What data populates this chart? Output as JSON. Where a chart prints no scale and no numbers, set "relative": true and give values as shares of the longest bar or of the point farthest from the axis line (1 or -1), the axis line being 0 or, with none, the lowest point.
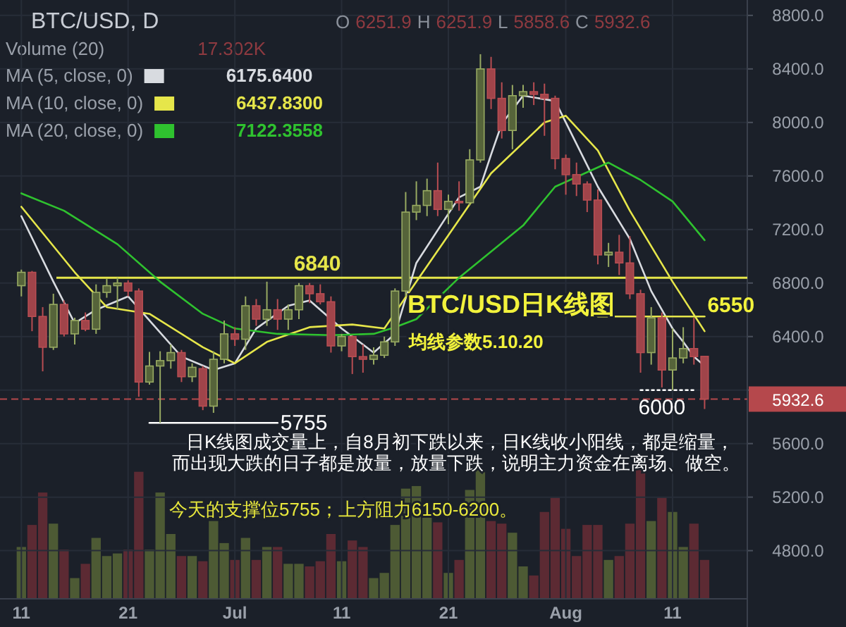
{
  "chart_data": [
    {
      "type": "candlestick",
      "title": "BTC/USD, D",
      "x": [
        "--06-11",
        "--06-12",
        "--06-13",
        "--06-14",
        "--06-15",
        "--06-16",
        "--06-17",
        "--06-18",
        "--06-19",
        "--06-20",
        "--06-21",
        "--06-22",
        "--06-23",
        "--06-24",
        "--06-25",
        "--06-26",
        "--06-27",
        "--06-28",
        "--06-29",
        "--06-30",
        "--07-01",
        "--07-02",
        "--07-03",
        "--07-04",
        "--07-05",
        "--07-06",
        "--07-07",
        "--07-08",
        "--07-09",
        "--07-10",
        "--07-11",
        "--07-12",
        "--07-13",
        "--07-14",
        "--07-15",
        "--07-16",
        "--07-17",
        "--07-18",
        "--07-19",
        "--07-20",
        "--07-21",
        "--07-22",
        "--07-23",
        "--07-24",
        "--07-25",
        "--07-26",
        "--07-27",
        "--07-28",
        "--07-29",
        "--07-30",
        "--07-31",
        "--08-01",
        "--08-02",
        "--08-03",
        "--08-04",
        "--08-05",
        "--08-06",
        "--08-07",
        "--08-08",
        "--08-09",
        "--08-10",
        "--08-11",
        "--08-12",
        "--08-13",
        "--08-14"
      ],
      "ohlc": [
        [
          6780,
          6900,
          6700,
          6880
        ],
        [
          6880,
          6890,
          6440,
          6550
        ],
        [
          6550,
          6620,
          6140,
          6320
        ],
        [
          6320,
          6720,
          6300,
          6640
        ],
        [
          6640,
          6670,
          6400,
          6420
        ],
        [
          6420,
          6540,
          6340,
          6520
        ],
        [
          6520,
          6580,
          6440,
          6455
        ],
        [
          6455,
          6790,
          6420,
          6730
        ],
        [
          6730,
          6830,
          6690,
          6780
        ],
        [
          6780,
          6840,
          6600,
          6800
        ],
        [
          6800,
          6820,
          6700,
          6740
        ],
        [
          6740,
          6760,
          5950,
          6060
        ],
        [
          6060,
          6285,
          6040,
          6180
        ],
        [
          6180,
          6290,
          5755,
          6220
        ],
        [
          6220,
          6340,
          6160,
          6280
        ],
        [
          6280,
          6300,
          6060,
          6100
        ],
        [
          6100,
          6200,
          6060,
          6170
        ],
        [
          6160,
          6180,
          5850,
          5880
        ],
        [
          5880,
          6290,
          5830,
          6230
        ],
        [
          6230,
          6520,
          6200,
          6420
        ],
        [
          6420,
          6470,
          6330,
          6380
        ],
        [
          6380,
          6700,
          6300,
          6630
        ],
        [
          6630,
          6680,
          6480,
          6530
        ],
        [
          6530,
          6810,
          6480,
          6600
        ],
        [
          6600,
          6680,
          6450,
          6530
        ],
        [
          6530,
          6640,
          6450,
          6600
        ],
        [
          6600,
          6800,
          6530,
          6780
        ],
        [
          6780,
          6800,
          6650,
          6720
        ],
        [
          6720,
          6790,
          6640,
          6660
        ],
        [
          6660,
          6700,
          6280,
          6330
        ],
        [
          6330,
          6420,
          6290,
          6400
        ],
        [
          6400,
          6410,
          6120,
          6250
        ],
        [
          6250,
          6340,
          6130,
          6230
        ],
        [
          6230,
          6320,
          6190,
          6260
        ],
        [
          6260,
          6400,
          6240,
          6360
        ],
        [
          6360,
          6760,
          6330,
          6740
        ],
        [
          6740,
          7480,
          6700,
          7330
        ],
        [
          7330,
          7560,
          7270,
          7380
        ],
        [
          7380,
          7580,
          7300,
          7490
        ],
        [
          7490,
          7700,
          7300,
          7350
        ],
        [
          7350,
          7460,
          7240,
          7410
        ],
        [
          7410,
          7560,
          7340,
          7400
        ],
        [
          7400,
          7800,
          7380,
          7720
        ],
        [
          7720,
          8510,
          7700,
          8400
        ],
        [
          8400,
          8490,
          8100,
          8180
        ],
        [
          8180,
          8300,
          7880,
          7940
        ],
        [
          7940,
          8280,
          7800,
          8200
        ],
        [
          8200,
          8280,
          8110,
          8230
        ],
        [
          8230,
          8300,
          8130,
          8210
        ],
        [
          8210,
          8290,
          7900,
          8180
        ],
        [
          8180,
          8200,
          7650,
          7730
        ],
        [
          7730,
          7760,
          7460,
          7610
        ],
        [
          7610,
          7700,
          7450,
          7540
        ],
        [
          7540,
          7560,
          7330,
          7420
        ],
        [
          7420,
          7500,
          6940,
          7010
        ],
        [
          7010,
          7100,
          6920,
          7030
        ],
        [
          7030,
          7160,
          6860,
          6950
        ],
        [
          6950,
          7150,
          6680,
          6720
        ],
        [
          6720,
          6750,
          6130,
          6280
        ],
        [
          6280,
          6620,
          6190,
          6540
        ],
        [
          6540,
          6580,
          6020,
          6150
        ],
        [
          6150,
          6460,
          6000,
          6240
        ],
        [
          6240,
          6470,
          6200,
          6310
        ],
        [
          6310,
          6540,
          6190,
          6250
        ],
        [
          6251.9,
          6251.9,
          5858.6,
          5932.6
        ]
      ],
      "series": [
        {
          "name": "MA (5, close, 0)",
          "type": "line",
          "color": "#d8dbe0",
          "x": [
            "--06-11",
            "--06-14",
            "--06-16",
            "--06-18",
            "--06-21",
            "--06-23",
            "--06-26",
            "--06-29",
            "--07-01",
            "--07-03",
            "--07-06",
            "--07-08",
            "--07-11",
            "--07-14",
            "--07-16",
            "--07-18",
            "--07-22",
            "--07-24",
            "--07-25",
            "--07-26",
            "--07-28",
            "--07-31",
            "--08-04",
            "--08-07",
            "--08-09",
            "--08-11",
            "--08-12",
            "--08-13",
            "--08-14"
          ],
          "values": [
            7300,
            6810,
            6500,
            6600,
            6700,
            6520,
            6250,
            6150,
            6200,
            6460,
            6630,
            6670,
            6460,
            6280,
            6420,
            6950,
            7440,
            7520,
            7760,
            7990,
            8200,
            8160,
            7520,
            7130,
            6740,
            6460,
            6360,
            6250,
            6180
          ]
        },
        {
          "name": "MA (10, close, 0)",
          "type": "line",
          "color": "#e6e64a",
          "x": [
            "--06-11",
            "--06-16",
            "--06-19",
            "--06-23",
            "--06-28",
            "--07-01",
            "--07-04",
            "--07-08",
            "--07-12",
            "--07-15",
            "--07-18",
            "--07-25",
            "--07-30",
            "--08-01",
            "--08-04",
            "--08-07",
            "--08-11",
            "--08-14"
          ],
          "values": [
            7370,
            6880,
            6620,
            6570,
            6320,
            6200,
            6360,
            6470,
            6490,
            6460,
            6810,
            7620,
            8000,
            8050,
            7790,
            7340,
            6810,
            6440
          ]
        },
        {
          "name": "MA (20, close, 0)",
          "type": "line",
          "color": "#2fc22f",
          "x": [
            "--06-11",
            "--06-15",
            "--06-20",
            "--06-24",
            "--06-28",
            "--07-01",
            "--07-05",
            "--07-10",
            "--07-14",
            "--07-16",
            "--07-18",
            "--07-22",
            "--07-28",
            "--07-31",
            "--08-05",
            "--08-08",
            "--08-11",
            "--08-14"
          ],
          "values": [
            7470,
            7340,
            7090,
            6810,
            6570,
            6460,
            6420,
            6410,
            6420,
            6470,
            6530,
            6840,
            7230,
            7520,
            7700,
            7570,
            7410,
            7120
          ]
        },
        {
          "type": "line",
          "color": "#ffffff",
          "x": [
            "--06-23",
            "--07-05"
          ],
          "values": [
            5755,
            5755
          ]
        },
        {
          "type": "line",
          "color": "#e6e64a",
          "x": [
            "--08-04",
            "--08-14"
          ],
          "values": [
            6550,
            6550
          ]
        },
        {
          "type": "line",
          "color": "#ffffff",
          "line_style": "dotted",
          "x": [
            "--08-08",
            "--08-13"
          ],
          "values": [
            6000,
            6000
          ]
        }
      ],
      "xlim": [
        "--06-09",
        "--08-18"
      ],
      "xticks": [
        {
          "value": "--06-11",
          "label": "11"
        },
        {
          "value": "--06-21",
          "label": "21"
        },
        {
          "value": "--07-01",
          "label": "Jul"
        },
        {
          "value": "--07-11",
          "label": "11"
        },
        {
          "value": "--07-21",
          "label": "21"
        },
        {
          "value": "--08-01",
          "label": "Aug"
        },
        {
          "value": "--08-11",
          "label": "11"
        }
      ],
      "ylim": [
        4440,
        8915
      ],
      "yticks": [
        {
          "value": 4800,
          "label": "4800.0"
        },
        {
          "value": 5200,
          "label": "5200.0"
        },
        {
          "value": 5600,
          "label": "5600.0"
        },
        {
          "value": 6000,
          "label": null
        },
        {
          "value": 6400,
          "label": "6400.0"
        },
        {
          "value": 6800,
          "label": "6800.0"
        },
        {
          "value": 7200,
          "label": "7200.0"
        },
        {
          "value": 7600,
          "label": "7600.0"
        },
        {
          "value": 8000,
          "label": "8000.0"
        },
        {
          "value": 8400,
          "label": "8400.0"
        },
        {
          "value": 8800,
          "label": "8800.0"
        }
      ],
      "grid": true,
      "legend": "top left",
      "ref_lines": [
        {
          "axis": "y",
          "value": 6840,
          "label": "6840",
          "color": "#e6e64a"
        },
        {
          "axis": "y",
          "value": 5932.6,
          "label": "5932.6",
          "color": "#b5484c",
          "line_style": "dashed"
        }
      ],
      "annotations": [
        "O 6251.9 H 6251.9 L 5858.6 C 5932.6",
        "6175.6400",
        "6437.8300",
        "7122.3558",
        "BTC/USD日K线图",
        "均线参数5.10.20",
        "日K线图成交量上，自8月初下跌以来，日K线收小阳线，都是缩量，",
        "而出现大跌的日子都是放量，放量下跌，说明主力资金在离场、做空。",
        "今天的支撑位5755；上方阻力6150-6200。",
        {
          "text": "5755",
          "x": "--07-05",
          "y": 5755
        },
        {
          "text": "6550",
          "x": "--08-14",
          "y": 6550
        },
        {
          "text": "6000",
          "x": "--08-10",
          "y": 6000
        }
      ]
    },
    {
      "type": "bar",
      "relative": true,
      "categories": [
        null,
        null,
        null,
        null,
        null,
        null,
        null,
        null,
        null,
        null,
        null,
        null,
        null,
        null,
        null,
        null,
        null,
        null,
        null,
        null,
        null,
        null,
        null,
        null,
        null,
        null,
        null,
        null,
        null,
        null,
        null,
        null,
        null,
        null,
        null,
        null,
        null,
        null,
        null,
        null,
        null,
        null,
        null,
        null,
        null,
        null,
        null,
        null,
        null,
        null,
        null,
        null,
        null,
        null,
        null,
        null,
        null,
        null,
        null,
        null,
        null,
        null,
        null,
        null,
        null
      ],
      "series": [
        {
          "name": "Volume (20)",
          "values": [
            0.4,
            0.57,
            0.82,
            0.58,
            0.38,
            0.16,
            0.27,
            0.47,
            0.33,
            0.35,
            0.38,
            0.98,
            0.38,
            0.82,
            0.5,
            0.33,
            0.33,
            0.29,
            0.6,
            0.43,
            0.3,
            0.47,
            0.3,
            0.4,
            0.4,
            0.27,
            0.27,
            0.25,
            0.29,
            0.5,
            0.29,
            0.45,
            0.4,
            0.16,
            0.2,
            0.57,
            0.85,
            0.87,
            0.67,
            0.59,
            0.2,
            0.3,
            0.84,
            1,
            0.6,
            0.58,
            0.51,
            0.25,
            0.18,
            0.67,
            0.78,
            0.54,
            0.33,
            0.57,
            0.57,
            0.3,
            0.33,
            0.58,
            1,
            0.6,
            0.78,
            0.67,
            0.4,
            0.58,
            0.3
          ],
          "colors": [
            "#4d5a34",
            "#5c2a33",
            "#5c2a33",
            "#4d5a34",
            "#5c2a33",
            "#4d5a34",
            "#5c2a33",
            "#4d5a34",
            "#4d5a34",
            "#4d5a34",
            "#5c2a33",
            "#5c2a33",
            "#4d5a34",
            "#4d5a34",
            "#4d5a34",
            "#5c2a33",
            "#4d5a34",
            "#5c2a33",
            "#4d5a34",
            "#4d5a34",
            "#5c2a33",
            "#4d5a34",
            "#5c2a33",
            "#4d5a34",
            "#5c2a33",
            "#4d5a34",
            "#4d5a34",
            "#5c2a33",
            "#5c2a33",
            "#5c2a33",
            "#4d5a34",
            "#5c2a33",
            "#5c2a33",
            "#4d5a34",
            "#4d5a34",
            "#4d5a34",
            "#4d5a34",
            "#4d5a34",
            "#4d5a34",
            "#5c2a33",
            "#4d5a34",
            "#5c2a33",
            "#4d5a34",
            "#4d5a34",
            "#5c2a33",
            "#5c2a33",
            "#4d5a34",
            "#4d5a34",
            "#5c2a33",
            "#5c2a33",
            "#5c2a33",
            "#5c2a33",
            "#5c2a33",
            "#5c2a33",
            "#5c2a33",
            "#4d5a34",
            "#5c2a33",
            "#5c2a33",
            "#5c2a33",
            "#4d5a34",
            "#5c2a33",
            "#4d5a34",
            "#4d5a34",
            "#5c2a33",
            "#5c2a33"
          ]
        }
      ],
      "annotations": [
        "17.302K"
      ]
    }
  ]
}
